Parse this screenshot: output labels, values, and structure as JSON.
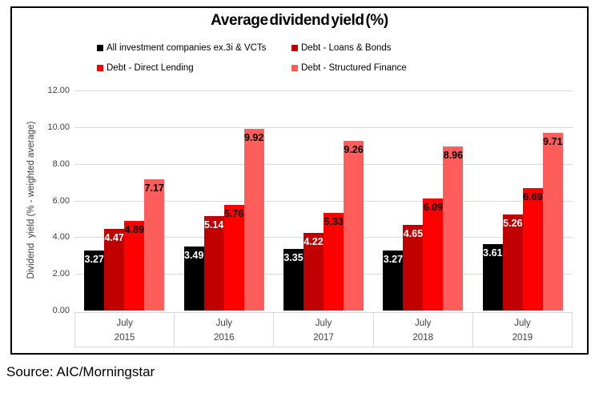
{
  "source": "Source: AIC/Morningstar",
  "chart_data": {
    "type": "bar",
    "title": "Average dividend yield (%)",
    "xlabel": "",
    "ylabel": "Dividend  yield (% - weighted average)",
    "ylim": [
      0,
      12
    ],
    "ytick_step": 2,
    "yticks": [
      "12.00",
      "10.00",
      "8.00",
      "6.00",
      "4.00",
      "2.00",
      "0.00"
    ],
    "grid": true,
    "legend_position": "top",
    "categories": [
      [
        "July",
        "2015"
      ],
      [
        "July",
        "2016"
      ],
      [
        "July",
        "2017"
      ],
      [
        "July",
        "2018"
      ],
      [
        "July",
        "2019"
      ]
    ],
    "series": [
      {
        "name": "All investment companies ex.3i & VCTs",
        "color": "#000000",
        "label_color": "#FFFFFF",
        "values": [
          3.27,
          3.49,
          3.35,
          3.27,
          3.61
        ]
      },
      {
        "name": "Debt - Loans & Bonds",
        "color": "#C00000",
        "label_color": "#FFFFFF",
        "values": [
          4.47,
          5.14,
          4.22,
          4.65,
          5.26
        ]
      },
      {
        "name": "Debt - Direct Lending",
        "color": "#FF0000",
        "label_color": "#000000",
        "values": [
          4.89,
          5.76,
          5.33,
          6.09,
          6.69
        ]
      },
      {
        "name": "Debt - Structured Finance",
        "color": "#FF5C5C",
        "label_color": "#000000",
        "values": [
          7.17,
          9.92,
          9.26,
          8.96,
          9.71
        ]
      }
    ],
    "colors": {
      "gridline": "#D9D9D9",
      "axis_text": "#404040",
      "frame_border": "#000000"
    }
  }
}
